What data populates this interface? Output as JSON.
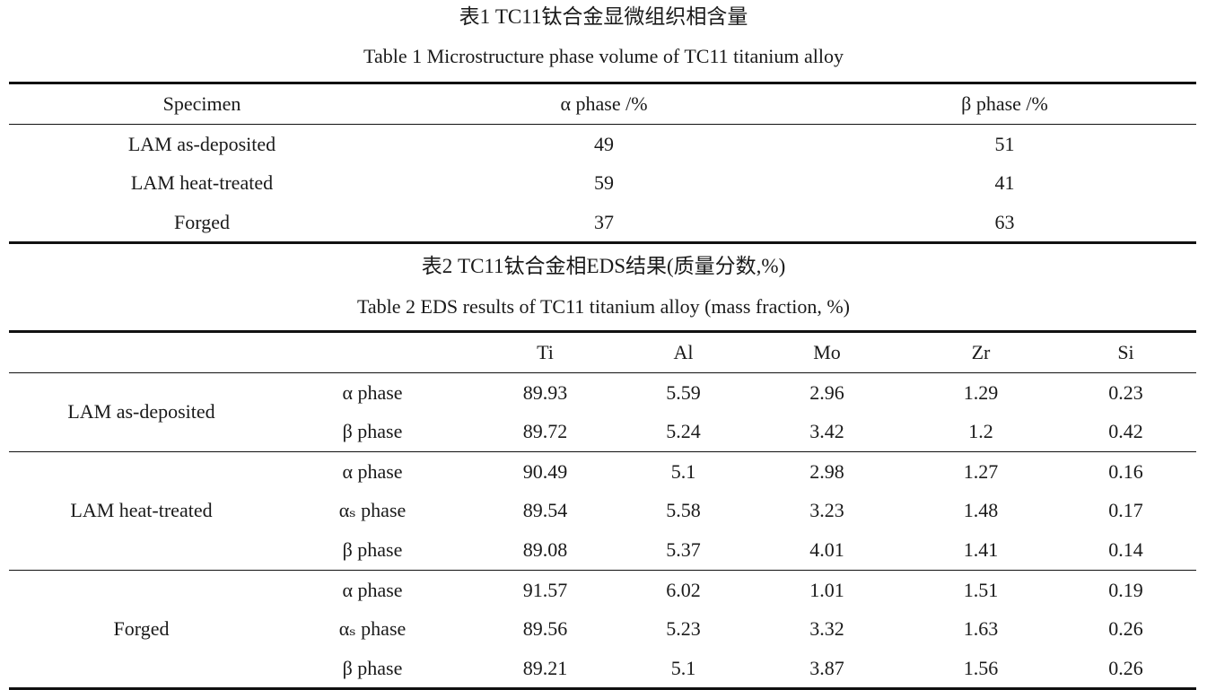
{
  "table1": {
    "title_cn": "表1 TC11钛合金显微组织相含量",
    "title_en": "Table 1  Microstructure phase volume of TC11 titanium alloy",
    "headers": [
      "Specimen",
      "α phase /%",
      "β phase /%"
    ],
    "rows": [
      [
        "LAM as-deposited",
        "49",
        "51"
      ],
      [
        "LAM heat-treated",
        "59",
        "41"
      ],
      [
        "Forged",
        "37",
        "63"
      ]
    ]
  },
  "table2": {
    "title_cn": "表2 TC11钛合金相EDS结果(质量分数,%)",
    "title_en": "Table 2  EDS results of TC11 titanium alloy (mass fraction, %)",
    "headers": [
      "",
      "",
      "Ti",
      "Al",
      "Mo",
      "Zr",
      "Si"
    ],
    "groups": [
      {
        "specimen": "LAM as-deposited",
        "rows": [
          {
            "phase": "α phase",
            "values": [
              "89.93",
              "5.59",
              "2.96",
              "1.29",
              "0.23"
            ]
          },
          {
            "phase": "β phase",
            "values": [
              "89.72",
              "5.24",
              "3.42",
              "1.2",
              "0.42"
            ]
          }
        ]
      },
      {
        "specimen": "LAM heat-treated",
        "rows": [
          {
            "phase": "α phase",
            "values": [
              "90.49",
              "5.1",
              "2.98",
              "1.27",
              "0.16"
            ]
          },
          {
            "phase": "αₛ phase",
            "values": [
              "89.54",
              "5.58",
              "3.23",
              "1.48",
              "0.17"
            ]
          },
          {
            "phase": "β phase",
            "values": [
              "89.08",
              "5.37",
              "4.01",
              "1.41",
              "0.14"
            ]
          }
        ]
      },
      {
        "specimen": "Forged",
        "rows": [
          {
            "phase": "α phase",
            "values": [
              "91.57",
              "6.02",
              "1.01",
              "1.51",
              "0.19"
            ]
          },
          {
            "phase": "αₛ phase",
            "values": [
              "89.56",
              "5.23",
              "3.32",
              "1.63",
              "0.26"
            ]
          },
          {
            "phase": "β phase",
            "values": [
              "89.21",
              "5.1",
              "3.87",
              "1.56",
              "0.26"
            ]
          }
        ]
      }
    ]
  }
}
